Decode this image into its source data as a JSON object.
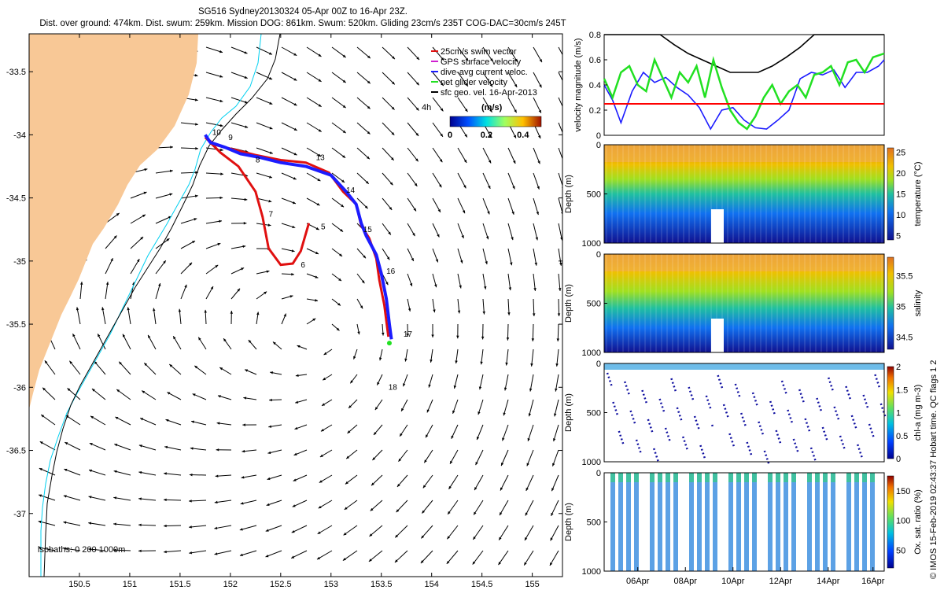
{
  "header": {
    "title": "SG516 Sydney20130324 05-Apr 00Z to 16-Apr 23Z.",
    "subtitle": "Dist. over ground: 474km. Dist. swum: 259km. Mission DOG: 861km. Swum: 520km. Gliding 23cm/s 235T COG-DAC=30cm/s 245T"
  },
  "credit": "© IMOS 15-Feb-2019 02:43:37 Hobart time. QC flags 1  2",
  "colors": {
    "land": "#f8c896",
    "isobath_0": "#00d0f0",
    "isobath_1000": "#000000",
    "track_dac": "#1c1cff",
    "track_swim": "#e01010",
    "net_velocity": "#22e022",
    "threshold_line": "#ff0000"
  },
  "chart_data": [
    {
      "type": "map",
      "xticks": [
        "150.5",
        "151",
        "151.5",
        "152",
        "152.5",
        "153",
        "153.5",
        "154",
        "154.5",
        "155"
      ],
      "yticks": [
        "-33.5",
        "-34",
        "-34.5",
        "-35",
        "-35.5",
        "-36",
        "-36.5",
        "-37"
      ],
      "xlim": [
        150.0,
        155.3
      ],
      "ylim": [
        -37.5,
        -33.2
      ],
      "legend": {
        "placement": "top-right",
        "entries": [
          {
            "label": "25cm/s swim vector",
            "color": "#e01010"
          },
          {
            "label": "GPS surface velocity",
            "color": "#d020d0"
          },
          {
            "label": "dive-avg current veloc.",
            "color": "#1c1cff"
          },
          {
            "label": "net glider velocity",
            "color": "#22e022"
          },
          {
            "label": "sfc geo. vel. 16-Apr-2013",
            "color": "#000000"
          }
        ],
        "time_label": "4h"
      },
      "colorbar": {
        "label": "(m/s)",
        "ticks": [
          "0",
          "0.2",
          "0.4"
        ],
        "range": [
          0,
          0.5
        ]
      },
      "isobaths_label": "isobaths: 0   200  1000m",
      "track": [
        [
          151.75,
          -34.0
        ],
        [
          151.8,
          -34.06
        ],
        [
          151.95,
          -34.1
        ],
        [
          152.1,
          -34.15
        ],
        [
          152.3,
          -34.18
        ],
        [
          152.5,
          -34.22
        ],
        [
          152.75,
          -34.25
        ],
        [
          153.0,
          -34.32
        ],
        [
          153.15,
          -34.45
        ],
        [
          153.25,
          -34.55
        ],
        [
          153.3,
          -34.7
        ],
        [
          153.35,
          -34.8
        ],
        [
          153.45,
          -34.95
        ],
        [
          153.5,
          -35.1
        ],
        [
          153.55,
          -35.3
        ],
        [
          153.58,
          -35.5
        ],
        [
          153.6,
          -35.62
        ]
      ],
      "swim_track": [
        [
          152.78,
          -34.7
        ],
        [
          152.7,
          -34.92
        ],
        [
          152.62,
          -35.02
        ],
        [
          152.5,
          -35.03
        ],
        [
          152.38,
          -34.9
        ],
        [
          152.32,
          -34.65
        ],
        [
          152.25,
          -34.45
        ],
        [
          152.08,
          -34.25
        ],
        [
          151.9,
          -34.14
        ],
        [
          151.75,
          -34.02
        ],
        [
          151.85,
          -34.08
        ],
        [
          152.05,
          -34.12
        ],
        [
          152.25,
          -34.16
        ],
        [
          152.5,
          -34.2
        ],
        [
          152.75,
          -34.22
        ],
        [
          152.98,
          -34.3
        ],
        [
          153.12,
          -34.45
        ],
        [
          153.25,
          -34.55
        ],
        [
          153.3,
          -34.72
        ],
        [
          153.38,
          -34.82
        ],
        [
          153.45,
          -34.98
        ],
        [
          153.48,
          -35.15
        ],
        [
          153.53,
          -35.35
        ],
        [
          153.57,
          -35.6
        ]
      ],
      "day_labels": [
        {
          "text": "10",
          "lon": 151.82,
          "lat": -34.0
        },
        {
          "text": "9",
          "lon": 151.98,
          "lat": -34.04
        },
        {
          "text": "8",
          "lon": 152.25,
          "lat": -34.22
        },
        {
          "text": "13",
          "lon": 152.85,
          "lat": -34.2
        },
        {
          "text": "7",
          "lon": 152.38,
          "lat": -34.65
        },
        {
          "text": "5",
          "lon": 152.9,
          "lat": -34.75
        },
        {
          "text": "6",
          "lon": 152.7,
          "lat": -35.05
        },
        {
          "text": "14",
          "lon": 153.15,
          "lat": -34.46
        },
        {
          "text": "15",
          "lon": 153.32,
          "lat": -34.77
        },
        {
          "text": "16",
          "lon": 153.55,
          "lat": -35.1
        },
        {
          "text": "17",
          "lon": 153.72,
          "lat": -35.6
        },
        {
          "text": "18",
          "lon": 153.57,
          "lat": -36.02
        }
      ],
      "net_velocity_point": [
        153.58,
        -35.65
      ]
    },
    {
      "type": "line",
      "ylabel": "velocity magnitude (m/s)",
      "ylim": [
        0,
        0.8
      ],
      "yticks": [
        "0",
        "0.2",
        "0.4",
        "0.6",
        "0.8"
      ],
      "threshold": 0.25,
      "series": [
        {
          "color": "#000000",
          "x": [
            0,
            0.05,
            0.1,
            0.15,
            0.2,
            0.25,
            0.3,
            0.35,
            0.4,
            0.45,
            0.5,
            0.55,
            0.6,
            0.65,
            0.7,
            0.75,
            0.8,
            0.85,
            0.9,
            0.95,
            1.0
          ],
          "y": [
            0.8,
            0.8,
            0.8,
            0.8,
            0.8,
            0.72,
            0.65,
            0.6,
            0.55,
            0.5,
            0.5,
            0.5,
            0.55,
            0.62,
            0.7,
            0.8,
            0.8,
            0.8,
            0.8,
            0.8,
            0.8
          ]
        },
        {
          "color": "#1c1cff",
          "x": [
            0,
            0.03,
            0.06,
            0.1,
            0.14,
            0.18,
            0.22,
            0.26,
            0.3,
            0.34,
            0.38,
            0.42,
            0.46,
            0.5,
            0.54,
            0.58,
            0.62,
            0.66,
            0.7,
            0.74,
            0.78,
            0.82,
            0.86,
            0.9,
            0.94,
            0.98,
            1.0
          ],
          "y": [
            0.4,
            0.28,
            0.1,
            0.35,
            0.5,
            0.42,
            0.46,
            0.38,
            0.32,
            0.22,
            0.05,
            0.2,
            0.22,
            0.12,
            0.06,
            0.05,
            0.12,
            0.2,
            0.45,
            0.5,
            0.48,
            0.52,
            0.38,
            0.5,
            0.5,
            0.55,
            0.6
          ]
        },
        {
          "color": "#22e022",
          "x": [
            0,
            0.03,
            0.06,
            0.09,
            0.12,
            0.15,
            0.18,
            0.21,
            0.24,
            0.27,
            0.3,
            0.33,
            0.36,
            0.39,
            0.42,
            0.45,
            0.48,
            0.51,
            0.54,
            0.57,
            0.6,
            0.63,
            0.66,
            0.69,
            0.72,
            0.75,
            0.78,
            0.81,
            0.84,
            0.87,
            0.9,
            0.93,
            0.96,
            1.0
          ],
          "y": [
            0.45,
            0.3,
            0.5,
            0.55,
            0.4,
            0.35,
            0.6,
            0.45,
            0.3,
            0.5,
            0.42,
            0.55,
            0.3,
            0.6,
            0.38,
            0.2,
            0.1,
            0.05,
            0.15,
            0.3,
            0.4,
            0.25,
            0.35,
            0.4,
            0.3,
            0.48,
            0.5,
            0.55,
            0.4,
            0.58,
            0.6,
            0.5,
            0.62,
            0.65
          ]
        }
      ]
    },
    {
      "type": "heatmap",
      "ylabel": "Depth (m)",
      "yticks": [
        "0",
        "500",
        "1000"
      ],
      "cbar_label": "temperature (°C)",
      "cbar_ticks": [
        "25",
        "20",
        "15",
        "10",
        "5"
      ],
      "cbar_range": [
        4,
        26
      ]
    },
    {
      "type": "heatmap",
      "ylabel": "Depth (m)",
      "yticks": [
        "0",
        "500",
        "1000"
      ],
      "cbar_label": "salinity",
      "cbar_ticks": [
        "35.5",
        "35",
        "34.5"
      ],
      "cbar_range": [
        34.3,
        35.8
      ]
    },
    {
      "type": "scatter",
      "ylabel": "Depth (m)",
      "yticks": [
        "0",
        "500",
        "1000"
      ],
      "cbar_label": "chl-a (mg m-3)",
      "cbar_ticks": [
        "2",
        "1.5",
        "1",
        "0.5",
        "0"
      ],
      "cbar_range": [
        0,
        2
      ]
    },
    {
      "type": "heatmap",
      "ylabel": "Depth (m)",
      "yticks": [
        "0",
        "500",
        "1000"
      ],
      "cbar_label": "Ox. sat. ratio (%)",
      "cbar_ticks": [
        "150",
        "100",
        "50"
      ],
      "cbar_range": [
        20,
        175
      ],
      "xticks": [
        "06Apr",
        "08Apr",
        "10Apr",
        "12Apr",
        "14Apr",
        "16Apr"
      ]
    }
  ]
}
